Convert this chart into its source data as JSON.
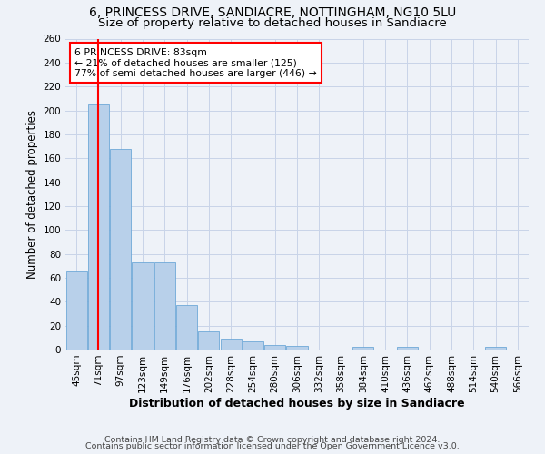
{
  "title_line1": "6, PRINCESS DRIVE, SANDIACRE, NOTTINGHAM, NG10 5LU",
  "title_line2": "Size of property relative to detached houses in Sandiacre",
  "xlabel": "Distribution of detached houses by size in Sandiacre",
  "ylabel": "Number of detached properties",
  "bar_color": "#b8d0ea",
  "bar_edge_color": "#6ea8d8",
  "grid_color": "#c8d4e8",
  "categories": [
    "45sqm",
    "71sqm",
    "97sqm",
    "123sqm",
    "149sqm",
    "176sqm",
    "202sqm",
    "228sqm",
    "254sqm",
    "280sqm",
    "306sqm",
    "332sqm",
    "358sqm",
    "384sqm",
    "410sqm",
    "436sqm",
    "462sqm",
    "488sqm",
    "514sqm",
    "540sqm",
    "566sqm"
  ],
  "values": [
    65,
    205,
    168,
    73,
    73,
    37,
    15,
    9,
    7,
    4,
    3,
    0,
    0,
    2,
    0,
    2,
    0,
    0,
    0,
    2,
    0
  ],
  "ylim": [
    0,
    260
  ],
  "yticks": [
    0,
    20,
    40,
    60,
    80,
    100,
    120,
    140,
    160,
    180,
    200,
    220,
    240,
    260
  ],
  "property_line_x": 1.0,
  "annotation_text": "6 PRINCESS DRIVE: 83sqm\n← 21% of detached houses are smaller (125)\n77% of semi-detached houses are larger (446) →",
  "annotation_box_color": "white",
  "annotation_box_edge": "red",
  "property_line_color": "red",
  "footer_line1": "Contains HM Land Registry data © Crown copyright and database right 2024.",
  "footer_line2": "Contains public sector information licensed under the Open Government Licence v3.0.",
  "background_color": "#eef2f8",
  "title_fontsize": 10,
  "subtitle_fontsize": 9.5,
  "ylabel_fontsize": 8.5,
  "xlabel_fontsize": 9,
  "tick_fontsize": 7.5,
  "footer_fontsize": 6.8,
  "annot_fontsize": 7.8
}
